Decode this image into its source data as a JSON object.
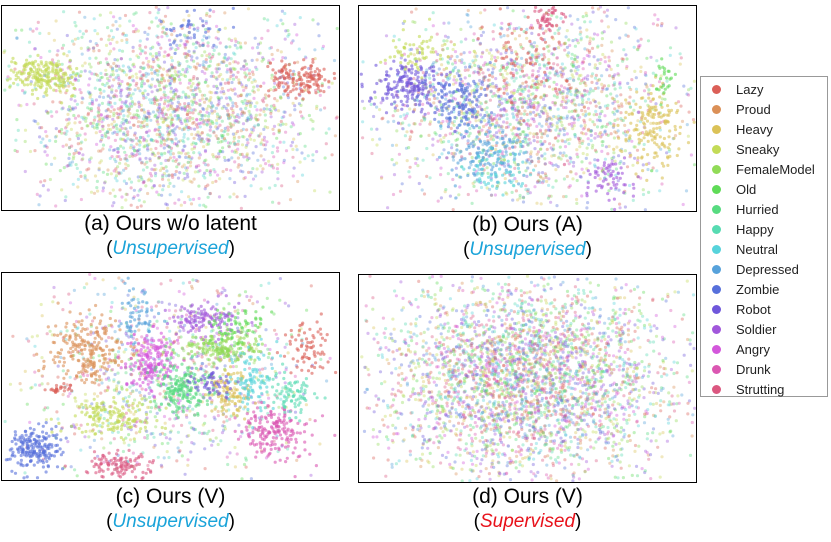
{
  "chart_data": [
    {
      "type": "scatter",
      "caption": "(a)  Ours w/o latent",
      "mode": "Unsupervised",
      "clusters": [
        {
          "class": "Sneaky",
          "cx": 0.12,
          "cy": 0.34,
          "sx": 0.045,
          "sy": 0.045,
          "n": 200
        },
        {
          "class": "Lazy",
          "cx": 0.88,
          "cy": 0.36,
          "sx": 0.045,
          "sy": 0.04,
          "n": 140
        },
        {
          "class": "Zombie",
          "cx": 0.58,
          "cy": 0.12,
          "sx": 0.05,
          "sy": 0.05,
          "n": 40
        }
      ],
      "diffuse": 2300
    },
    {
      "type": "scatter",
      "caption": "(b) Ours (A)",
      "mode": "Unsupervised",
      "clusters": [
        {
          "class": "Robot",
          "cx": 0.14,
          "cy": 0.38,
          "sx": 0.05,
          "sy": 0.06,
          "n": 180
        },
        {
          "class": "Zombie",
          "cx": 0.3,
          "cy": 0.47,
          "sx": 0.05,
          "sy": 0.07,
          "n": 130
        },
        {
          "class": "Strutting",
          "cx": 0.56,
          "cy": 0.06,
          "sx": 0.025,
          "sy": 0.035,
          "n": 50
        },
        {
          "class": "Heavy",
          "cx": 0.87,
          "cy": 0.6,
          "sx": 0.045,
          "sy": 0.1,
          "n": 160
        },
        {
          "class": "Soldier",
          "cx": 0.73,
          "cy": 0.83,
          "sx": 0.04,
          "sy": 0.05,
          "n": 60
        },
        {
          "class": "Sneaky",
          "cx": 0.16,
          "cy": 0.22,
          "sx": 0.05,
          "sy": 0.06,
          "n": 60
        },
        {
          "class": "Old",
          "cx": 0.9,
          "cy": 0.36,
          "sx": 0.02,
          "sy": 0.04,
          "n": 25
        },
        {
          "class": "Lazy",
          "cx": 0.5,
          "cy": 0.26,
          "sx": 0.06,
          "sy": 0.1,
          "n": 70
        },
        {
          "class": "Depressed",
          "cx": 0.38,
          "cy": 0.7,
          "sx": 0.06,
          "sy": 0.08,
          "n": 120
        },
        {
          "class": "Neutral",
          "cx": 0.42,
          "cy": 0.8,
          "sx": 0.05,
          "sy": 0.05,
          "n": 60
        }
      ],
      "diffuse": 2000
    },
    {
      "type": "scatter",
      "caption": "(c) Ours (V)",
      "mode": "Unsupervised",
      "clusters": [
        {
          "class": "Zombie",
          "cx": 0.09,
          "cy": 0.85,
          "sx": 0.04,
          "sy": 0.05,
          "n": 200
        },
        {
          "class": "Proud",
          "cx": 0.25,
          "cy": 0.38,
          "sx": 0.06,
          "sy": 0.08,
          "n": 220
        },
        {
          "class": "Angry",
          "cx": 0.44,
          "cy": 0.42,
          "sx": 0.04,
          "sy": 0.07,
          "n": 170
        },
        {
          "class": "Soldier",
          "cx": 0.6,
          "cy": 0.22,
          "sx": 0.05,
          "sy": 0.04,
          "n": 120
        },
        {
          "class": "FemaleModel",
          "cx": 0.65,
          "cy": 0.36,
          "sx": 0.06,
          "sy": 0.035,
          "n": 160
        },
        {
          "class": "Hurried",
          "cx": 0.53,
          "cy": 0.56,
          "sx": 0.04,
          "sy": 0.07,
          "n": 180
        },
        {
          "class": "Heavy",
          "cx": 0.68,
          "cy": 0.58,
          "sx": 0.03,
          "sy": 0.06,
          "n": 100
        },
        {
          "class": "Drunk",
          "cx": 0.8,
          "cy": 0.77,
          "sx": 0.05,
          "sy": 0.07,
          "n": 180
        },
        {
          "class": "Strutting",
          "cx": 0.34,
          "cy": 0.93,
          "sx": 0.05,
          "sy": 0.035,
          "n": 110
        },
        {
          "class": "Sneaky",
          "cx": 0.32,
          "cy": 0.7,
          "sx": 0.07,
          "sy": 0.05,
          "n": 150
        },
        {
          "class": "Depressed",
          "cx": 0.4,
          "cy": 0.2,
          "sx": 0.025,
          "sy": 0.07,
          "n": 60
        },
        {
          "class": "Neutral",
          "cx": 0.74,
          "cy": 0.52,
          "sx": 0.03,
          "sy": 0.08,
          "n": 90
        },
        {
          "class": "Lazy",
          "cx": 0.9,
          "cy": 0.35,
          "sx": 0.035,
          "sy": 0.06,
          "n": 70
        },
        {
          "class": "Happy",
          "cx": 0.86,
          "cy": 0.58,
          "sx": 0.04,
          "sy": 0.05,
          "n": 80
        },
        {
          "class": "Old",
          "cx": 0.7,
          "cy": 0.26,
          "sx": 0.05,
          "sy": 0.05,
          "n": 60
        },
        {
          "class": "Robot",
          "cx": 0.62,
          "cy": 0.52,
          "sx": 0.03,
          "sy": 0.04,
          "n": 50
        },
        {
          "class": "Lazy",
          "cx": 0.17,
          "cy": 0.56,
          "sx": 0.02,
          "sy": 0.01,
          "n": 25
        }
      ],
      "diffuse": 1000
    },
    {
      "type": "scatter",
      "caption": "(d) Ours (V)",
      "mode": "Supervised",
      "clusters": [],
      "diffuse": 3500
    }
  ],
  "legend": {
    "items": [
      {
        "label": "Lazy",
        "color": "#db5f57"
      },
      {
        "label": "Proud",
        "color": "#db9057"
      },
      {
        "label": "Heavy",
        "color": "#dbc257"
      },
      {
        "label": "Sneaky",
        "color": "#c3db57"
      },
      {
        "label": "FemaleModel",
        "color": "#91db57"
      },
      {
        "label": "Old",
        "color": "#5fdb57"
      },
      {
        "label": "Hurried",
        "color": "#57db80"
      },
      {
        "label": "Happy",
        "color": "#57dbb2"
      },
      {
        "label": "Neutral",
        "color": "#57d3db"
      },
      {
        "label": "Depressed",
        "color": "#57a2db"
      },
      {
        "label": "Zombie",
        "color": "#5770db"
      },
      {
        "label": "Robot",
        "color": "#6f57db"
      },
      {
        "label": "Soldier",
        "color": "#a157db"
      },
      {
        "label": "Angry",
        "color": "#d357db"
      },
      {
        "label": "Drunk",
        "color": "#db57b2"
      },
      {
        "label": "Strutting",
        "color": "#db5780"
      }
    ]
  },
  "colors": {
    "unsupervised": "#1aa3d9",
    "supervised": "#e8121b"
  }
}
